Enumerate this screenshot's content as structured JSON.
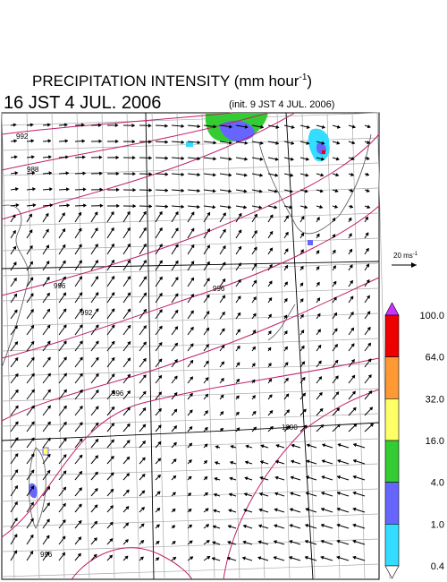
{
  "header": {
    "title": "PRECIPITATION INTENSITY (mm hour",
    "title_sup": "-1",
    "title_end": ")",
    "valid_time": "16 JST 4 JUL. 2006",
    "init_time": "(init. 9 JST 4 JUL. 2006)"
  },
  "scale_arrow": {
    "label": "20 ms",
    "label_sup": "-1"
  },
  "colorbar": {
    "labels": [
      "100.0",
      "64.0",
      "32.0",
      "16.0",
      "4.0",
      "1.0",
      "0.4"
    ],
    "colors": [
      "#cc33ff",
      "#ee0000",
      "#ff9933",
      "#ffff66",
      "#33cc33",
      "#6666ff",
      "#33ddff",
      "#ffffff"
    ]
  },
  "contour_labels": [
    "992",
    "988",
    "996",
    "996",
    "992",
    "996",
    "1000",
    "996"
  ]
}
